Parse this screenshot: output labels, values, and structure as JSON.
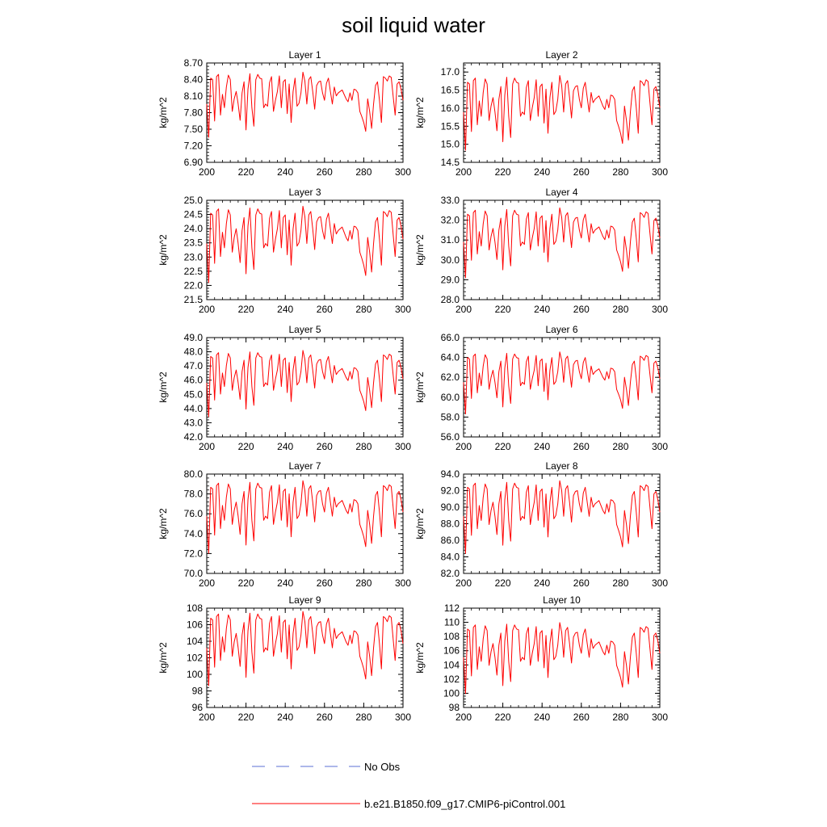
{
  "chart_data": {
    "type": "line",
    "title": "soil liquid water",
    "x": [
      200,
      201,
      202,
      203,
      204,
      205,
      206,
      207,
      208,
      209,
      210,
      211,
      212,
      213,
      214,
      215,
      216,
      217,
      218,
      219,
      220,
      221,
      222,
      223,
      224,
      225,
      226,
      227,
      228,
      229,
      230,
      231,
      232,
      233,
      234,
      235,
      236,
      237,
      238,
      239,
      240,
      241,
      242,
      243,
      244,
      245,
      246,
      247,
      248,
      249,
      250,
      251,
      252,
      253,
      254,
      255,
      256,
      257,
      258,
      259,
      260,
      261,
      262,
      263,
      264,
      265,
      266,
      267,
      268,
      269,
      270,
      271,
      272,
      273,
      274,
      275,
      276,
      277,
      278,
      279,
      280,
      281,
      282,
      283,
      284,
      285,
      286,
      287,
      288,
      289,
      290,
      291,
      292,
      293,
      294,
      295,
      296,
      297,
      298,
      299,
      300
    ],
    "base_pattern": [
      0.55,
      0.1,
      0.9,
      0.88,
      0.32,
      0.92,
      0.95,
      0.4,
      0.68,
      0.5,
      0.78,
      0.94,
      0.88,
      0.45,
      0.62,
      0.72,
      0.55,
      0.33,
      0.7,
      0.85,
      0.2,
      0.75,
      0.96,
      0.5,
      0.25,
      0.88,
      0.95,
      0.9,
      0.89,
      0.5,
      0.55,
      0.52,
      0.84,
      0.92,
      0.45,
      0.6,
      0.72,
      0.93,
      0.5,
      0.85,
      0.88,
      0.42,
      0.82,
      0.3,
      0.72,
      0.9,
      0.52,
      0.56,
      0.7,
      0.98,
      0.86,
      0.55,
      0.88,
      0.92,
      0.72,
      0.48,
      0.8,
      0.85,
      0.86,
      0.7,
      0.6,
      0.83,
      0.9,
      0.72,
      0.55,
      0.78,
      0.66,
      0.7,
      0.72,
      0.74,
      0.68,
      0.62,
      0.58,
      0.7,
      0.6,
      0.75,
      0.74,
      0.7,
      0.45,
      0.38,
      0.3,
      0.18,
      0.62,
      0.45,
      0.22,
      0.55,
      0.8,
      0.85,
      0.6,
      0.3,
      0.92,
      0.9,
      0.86,
      0.93,
      0.91,
      0.65,
      0.4,
      0.82,
      0.85,
      0.75,
      0.6
    ],
    "panels": [
      {
        "title": "Layer 1",
        "ylabel": "kg/m^2",
        "ylim": [
          6.9,
          8.7
        ],
        "yticks": [
          "6.90",
          "7.20",
          "7.50",
          "7.80",
          "8.10",
          "8.40",
          "8.70"
        ],
        "ystep": 0.3,
        "yminor": 0.06,
        "low": 7.22,
        "high": 8.56
      },
      {
        "title": "Layer 2",
        "ylabel": "kg/m^2",
        "ylim": [
          14.5,
          17.25
        ],
        "yticks": [
          "14.5",
          "15.0",
          "15.5",
          "16.0",
          "16.5",
          "17.0"
        ],
        "ystep": 0.5,
        "yminor": 0.1,
        "low": 14.6,
        "high": 16.95
      },
      {
        "title": "Layer 3",
        "ylabel": "kg/m^2",
        "ylim": [
          21.5,
          25.0
        ],
        "yticks": [
          "21.5",
          "22.0",
          "22.5",
          "23.0",
          "23.5",
          "24.0",
          "24.5",
          "25.0"
        ],
        "ystep": 0.5,
        "yminor": 0.1,
        "low": 21.8,
        "high": 24.85
      },
      {
        "title": "Layer 4",
        "ylabel": "kg/m^2",
        "ylim": [
          28.0,
          33.0
        ],
        "yticks": [
          "28.0",
          "29.0",
          "30.0",
          "31.0",
          "32.0",
          "33.0"
        ],
        "ystep": 1.0,
        "yminor": 0.2,
        "low": 28.7,
        "high": 32.7
      },
      {
        "title": "Layer 5",
        "ylabel": "kg/m^2",
        "ylim": [
          42.0,
          49.0
        ],
        "yticks": [
          "42.0",
          "43.0",
          "44.0",
          "45.0",
          "46.0",
          "47.0",
          "48.0",
          "49.0"
        ],
        "ystep": 1.0,
        "yminor": 0.2,
        "low": 42.9,
        "high": 48.2
      },
      {
        "title": "Layer 6",
        "ylabel": "kg/m^2",
        "ylim": [
          56.0,
          66.0
        ],
        "yticks": [
          "56.0",
          "58.0",
          "60.0",
          "62.0",
          "64.0",
          "66.0"
        ],
        "ystep": 2.0,
        "yminor": 0.4,
        "low": 57.6,
        "high": 64.7
      },
      {
        "title": "Layer 7",
        "ylabel": "kg/m^2",
        "ylim": [
          70.0,
          80.0
        ],
        "yticks": [
          "70.0",
          "72.0",
          "74.0",
          "76.0",
          "78.0",
          "80.0"
        ],
        "ystep": 2.0,
        "yminor": 0.4,
        "low": 71.2,
        "high": 79.5
      },
      {
        "title": "Layer 8",
        "ylabel": "kg/m^2",
        "ylim": [
          82.0,
          94.0
        ],
        "yticks": [
          "82.0",
          "84.0",
          "86.0",
          "88.0",
          "90.0",
          "92.0",
          "94.0"
        ],
        "ystep": 2.0,
        "yminor": 0.4,
        "low": 83.4,
        "high": 93.4
      },
      {
        "title": "Layer 9",
        "ylabel": "kg/m^2",
        "ylim": [
          96,
          108
        ],
        "yticks": [
          "96",
          "98",
          "100",
          "102",
          "104",
          "106",
          "108"
        ],
        "ystep": 2.0,
        "yminor": 0.4,
        "low": 97.6,
        "high": 107.8
      },
      {
        "title": "Layer 10",
        "ylabel": "kg/m^2",
        "ylim": [
          98,
          112
        ],
        "yticks": [
          "98",
          "100",
          "102",
          "104",
          "106",
          "108",
          "110",
          "112"
        ],
        "ystep": 2.0,
        "yminor": 0.4,
        "low": 98.8,
        "high": 110.2
      }
    ],
    "xlim": [
      200,
      300
    ],
    "xticks": [
      "200",
      "220",
      "240",
      "260",
      "280",
      "300"
    ],
    "xstep": 20,
    "xminor": 4,
    "legend": [
      {
        "name": "No Obs",
        "style": "dashed",
        "color": "#5b6fd6"
      },
      {
        "name": "b.e21.B1850.f09_g17.CMIP6-piControl.001",
        "style": "solid",
        "color": "#ff0000"
      }
    ],
    "legend_position": "bottom-center",
    "series_color": "#ff0000"
  }
}
